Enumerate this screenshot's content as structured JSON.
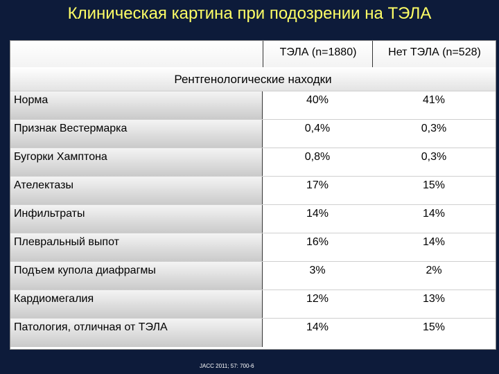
{
  "title": "Клиническая картина при подозрении на ТЭЛА",
  "table": {
    "columns": [
      "ТЭЛА (n=1880)",
      "Нет ТЭЛА (n=528)"
    ],
    "section": "Рентгенологические находки",
    "rows": [
      {
        "label": "Норма",
        "pe": "40%",
        "no_pe": "41%"
      },
      {
        "label": "Признак Вестермарка",
        "pe": "0,4%",
        "no_pe": "0,3%"
      },
      {
        "label": "Бугорки Хамптона",
        "pe": "0,8%",
        "no_pe": "0,3%"
      },
      {
        "label": "Ателектазы",
        "pe": "17%",
        "no_pe": "15%"
      },
      {
        "label": "Инфильтраты",
        "pe": "14%",
        "no_pe": "14%"
      },
      {
        "label": "Плевральный выпот",
        "pe": "16%",
        "no_pe": "14%"
      },
      {
        "label": "Подъем купола диафрагмы",
        "pe": "3%",
        "no_pe": "2%"
      },
      {
        "label": "Кардиомегалия",
        "pe": "12%",
        "no_pe": "13%"
      },
      {
        "label": "Патология, отличная от ТЭЛА",
        "pe": "14%",
        "no_pe": "15%"
      }
    ]
  },
  "citation": "JACC 2011; 57: 700-6"
}
